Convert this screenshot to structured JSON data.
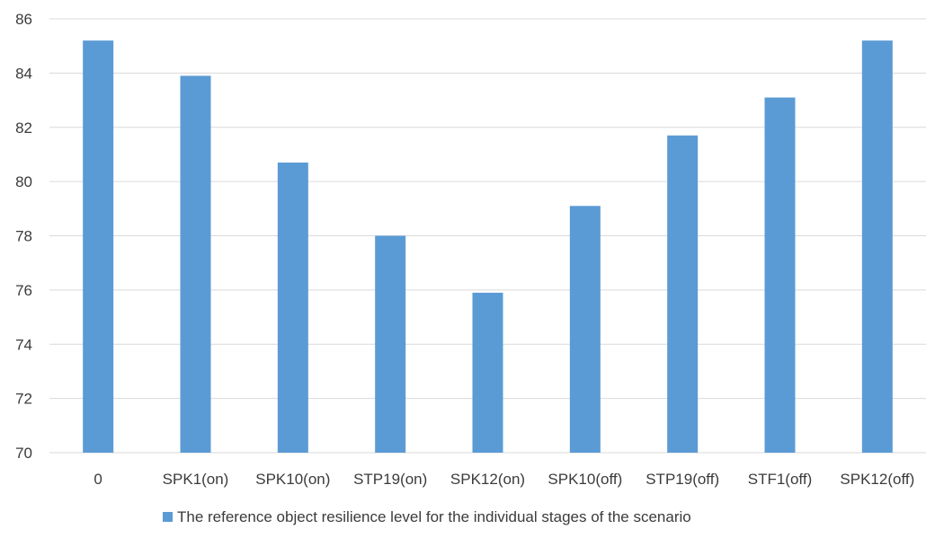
{
  "chart_data": {
    "type": "bar",
    "categories": [
      "0",
      "SPK1(on)",
      "SPK10(on)",
      "STP19(on)",
      "SPK12(on)",
      "SPK10(off)",
      "STP19(off)",
      "STF1(off)",
      "SPK12(off)"
    ],
    "series": [
      {
        "name": "The reference object resilience level for the individual stages of the scenario",
        "values": [
          85.2,
          83.9,
          80.7,
          78.0,
          75.9,
          79.1,
          81.7,
          83.1,
          85.2
        ],
        "color": "#5b9bd5"
      }
    ],
    "ylim": [
      70,
      86
    ],
    "yticks": [
      70,
      72,
      74,
      76,
      78,
      80,
      82,
      84,
      86
    ],
    "grid": true,
    "legend_position": "bottom"
  }
}
